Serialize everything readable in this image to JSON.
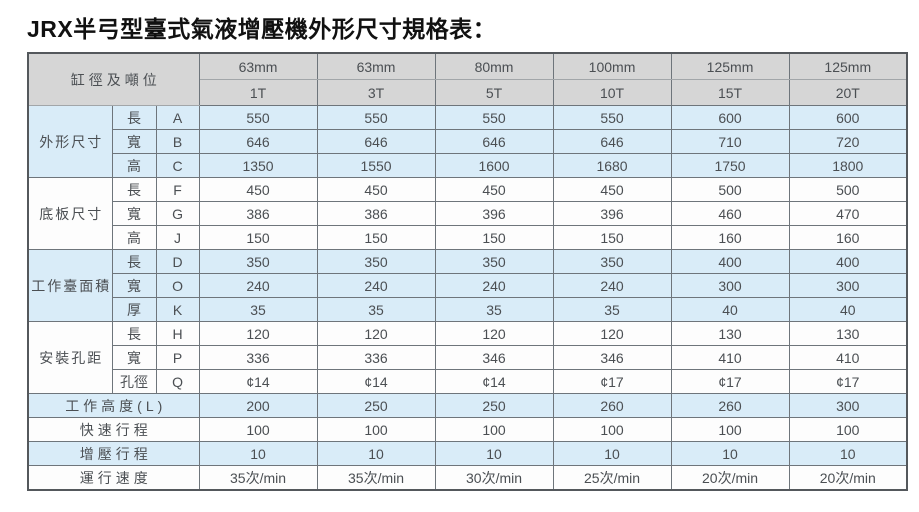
{
  "title": "JRX半弓型臺式氣液增壓機外形尺寸規格表：",
  "table": {
    "corner_header": "缸徑及噸位",
    "columns": [
      {
        "diameter": "63mm",
        "tonnage": "1T"
      },
      {
        "diameter": "63mm",
        "tonnage": "3T"
      },
      {
        "diameter": "80mm",
        "tonnage": "5T"
      },
      {
        "diameter": "100mm",
        "tonnage": "10T"
      },
      {
        "diameter": "125mm",
        "tonnage": "15T"
      },
      {
        "diameter": "125mm",
        "tonnage": "20T"
      }
    ],
    "groups": [
      {
        "name": "外形尺寸",
        "tone": "blue",
        "rows": [
          {
            "dim": "長",
            "code": "A",
            "values": [
              "550",
              "550",
              "550",
              "550",
              "600",
              "600"
            ]
          },
          {
            "dim": "寬",
            "code": "B",
            "values": [
              "646",
              "646",
              "646",
              "646",
              "710",
              "720"
            ]
          },
          {
            "dim": "高",
            "code": "C",
            "values": [
              "1350",
              "1550",
              "1600",
              "1680",
              "1750",
              "1800"
            ]
          }
        ]
      },
      {
        "name": "底板尺寸",
        "tone": "white",
        "rows": [
          {
            "dim": "長",
            "code": "F",
            "values": [
              "450",
              "450",
              "450",
              "450",
              "500",
              "500"
            ]
          },
          {
            "dim": "寬",
            "code": "G",
            "values": [
              "386",
              "386",
              "396",
              "396",
              "460",
              "470"
            ]
          },
          {
            "dim": "高",
            "code": "J",
            "values": [
              "150",
              "150",
              "150",
              "150",
              "160",
              "160"
            ]
          }
        ]
      },
      {
        "name": "工作臺面積",
        "tone": "blue",
        "rows": [
          {
            "dim": "長",
            "code": "D",
            "values": [
              "350",
              "350",
              "350",
              "350",
              "400",
              "400"
            ]
          },
          {
            "dim": "寬",
            "code": "O",
            "values": [
              "240",
              "240",
              "240",
              "240",
              "300",
              "300"
            ]
          },
          {
            "dim": "厚",
            "code": "K",
            "values": [
              "35",
              "35",
              "35",
              "35",
              "40",
              "40"
            ]
          }
        ]
      },
      {
        "name": "安裝孔距",
        "tone": "white",
        "rows": [
          {
            "dim": "長",
            "code": "H",
            "values": [
              "120",
              "120",
              "120",
              "120",
              "130",
              "130"
            ]
          },
          {
            "dim": "寬",
            "code": "P",
            "values": [
              "336",
              "336",
              "346",
              "346",
              "410",
              "410"
            ]
          },
          {
            "dim": "孔徑",
            "code": "Q",
            "values": [
              "¢14",
              "¢14",
              "¢14",
              "¢17",
              "¢17",
              "¢17"
            ]
          }
        ]
      }
    ],
    "footer_rows": [
      {
        "label": "工作高度(L)",
        "tone": "blue",
        "values": [
          "200",
          "250",
          "250",
          "260",
          "260",
          "300"
        ]
      },
      {
        "label": "快速行程",
        "tone": "white",
        "values": [
          "100",
          "100",
          "100",
          "100",
          "100",
          "100"
        ]
      },
      {
        "label": "增壓行程",
        "tone": "blue",
        "values": [
          "10",
          "10",
          "10",
          "10",
          "10",
          "10"
        ]
      },
      {
        "label": "運行速度",
        "tone": "white",
        "values": [
          "35次/min",
          "35次/min",
          "30次/min",
          "25次/min",
          "20次/min",
          "20次/min"
        ]
      }
    ],
    "colors": {
      "header_bg": "#d6d6d6",
      "band_blue": "#d9ecf8",
      "band_white": "#fdfdfd",
      "grid_line": "#6e757b",
      "outer_line": "#54585c",
      "text": "#4b4f53",
      "title_color": "#111111"
    }
  }
}
